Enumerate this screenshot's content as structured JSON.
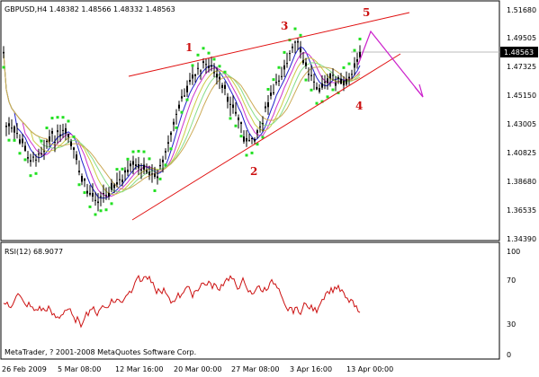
{
  "main_chart": {
    "header": "GBPUSD,H4  1.48382 1.48566 1.48332 1.48563",
    "price_ticks": [
      "1.51680",
      "1.49505",
      "1.47325",
      "1.45150",
      "1.43005",
      "1.40825",
      "1.38680",
      "1.36535",
      "1.34390"
    ],
    "price_range": [
      1.3439,
      1.5168
    ],
    "current_price": "1.48563",
    "wave_labels": [
      "1",
      "2",
      "3",
      "4",
      "5"
    ]
  },
  "rsi": {
    "header": "RSI(12) 68.9077",
    "ticks": [
      "100",
      "70",
      "30",
      "0"
    ],
    "copyright": "MetaTrader, ? 2001-2008 MetaQuotes Software Corp."
  },
  "time_axis": {
    "labels": [
      "26 Feb 2009",
      "5 Mar 08:00",
      "12 Mar 16:00",
      "20 Mar 00:00",
      "27 Mar 08:00",
      "3 Apr 16:00",
      "13 Apr 00:00"
    ]
  },
  "colors": {
    "grid": "#ffffff",
    "border": "#000000",
    "candles": "#000000",
    "parabolic_sar": "#22e022",
    "trend_lines": "#e01010",
    "forecast": "#cc22cc",
    "rsi_line": "#cc1111"
  }
}
